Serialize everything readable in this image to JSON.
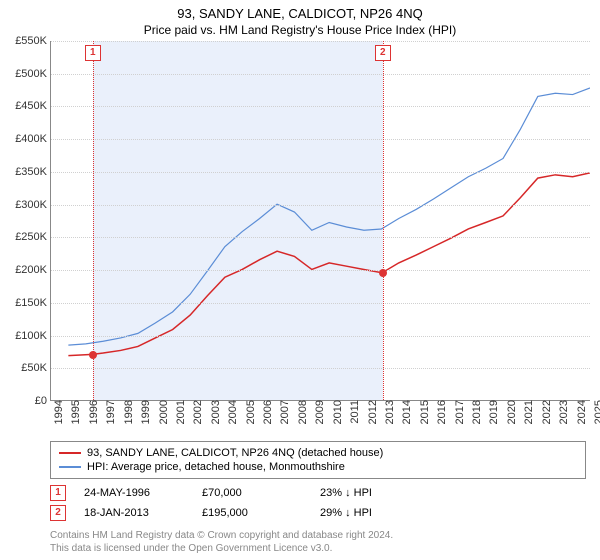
{
  "title": "93, SANDY LANE, CALDICOT, NP26 4NQ",
  "subtitle": "Price paid vs. HM Land Registry's House Price Index (HPI)",
  "chart": {
    "type": "line",
    "background_color": "#ffffff",
    "grid_color": "#d0d0d0",
    "axis_color": "#888888",
    "label_fontsize": 11,
    "x": {
      "min": 1994,
      "max": 2025,
      "ticks": [
        1994,
        1995,
        1996,
        1997,
        1998,
        1999,
        2000,
        2001,
        2002,
        2003,
        2004,
        2005,
        2006,
        2007,
        2008,
        2009,
        2010,
        2011,
        2012,
        2013,
        2014,
        2015,
        2016,
        2017,
        2018,
        2019,
        2020,
        2021,
        2022,
        2023,
        2024,
        2025
      ]
    },
    "y": {
      "min": 0,
      "max": 550000,
      "tick_step": 50000,
      "labels": [
        "£0",
        "£50K",
        "£100K",
        "£150K",
        "£200K",
        "£250K",
        "£300K",
        "£350K",
        "£400K",
        "£450K",
        "£500K",
        "£550K"
      ]
    },
    "shaded_span": {
      "from": 1996.4,
      "to": 2013.05,
      "color": "#eaf0fb"
    },
    "series": [
      {
        "name": "property",
        "color": "#d62728",
        "width": 1.5,
        "points": [
          [
            1995,
            68000
          ],
          [
            1996.4,
            70000
          ],
          [
            1997,
            72000
          ],
          [
            1998,
            76000
          ],
          [
            1999,
            82000
          ],
          [
            2000,
            95000
          ],
          [
            2001,
            108000
          ],
          [
            2002,
            130000
          ],
          [
            2003,
            160000
          ],
          [
            2004,
            188000
          ],
          [
            2005,
            200000
          ],
          [
            2006,
            215000
          ],
          [
            2007,
            228000
          ],
          [
            2008,
            220000
          ],
          [
            2009,
            200000
          ],
          [
            2010,
            210000
          ],
          [
            2011,
            205000
          ],
          [
            2012,
            200000
          ],
          [
            2013.05,
            195000
          ],
          [
            2014,
            210000
          ],
          [
            2015,
            222000
          ],
          [
            2016,
            235000
          ],
          [
            2017,
            248000
          ],
          [
            2018,
            262000
          ],
          [
            2019,
            272000
          ],
          [
            2020,
            282000
          ],
          [
            2021,
            310000
          ],
          [
            2022,
            340000
          ],
          [
            2023,
            345000
          ],
          [
            2024,
            342000
          ],
          [
            2025,
            348000
          ]
        ]
      },
      {
        "name": "hpi",
        "color": "#5b8dd6",
        "width": 1.2,
        "points": [
          [
            1995,
            84000
          ],
          [
            1996,
            86000
          ],
          [
            1997,
            90000
          ],
          [
            1998,
            95000
          ],
          [
            1999,
            102000
          ],
          [
            2000,
            118000
          ],
          [
            2001,
            135000
          ],
          [
            2002,
            162000
          ],
          [
            2003,
            198000
          ],
          [
            2004,
            235000
          ],
          [
            2005,
            258000
          ],
          [
            2006,
            278000
          ],
          [
            2007,
            300000
          ],
          [
            2008,
            288000
          ],
          [
            2009,
            260000
          ],
          [
            2010,
            272000
          ],
          [
            2011,
            265000
          ],
          [
            2012,
            260000
          ],
          [
            2013,
            262000
          ],
          [
            2014,
            278000
          ],
          [
            2015,
            292000
          ],
          [
            2016,
            308000
          ],
          [
            2017,
            325000
          ],
          [
            2018,
            342000
          ],
          [
            2019,
            355000
          ],
          [
            2020,
            370000
          ],
          [
            2021,
            415000
          ],
          [
            2022,
            465000
          ],
          [
            2023,
            470000
          ],
          [
            2024,
            468000
          ],
          [
            2025,
            478000
          ]
        ]
      }
    ],
    "sale_markers": [
      {
        "n": "1",
        "x": 1996.4,
        "y": 70000
      },
      {
        "n": "2",
        "x": 2013.05,
        "y": 195000
      }
    ]
  },
  "legend": [
    {
      "color": "#d62728",
      "label": "93, SANDY LANE, CALDICOT, NP26 4NQ (detached house)"
    },
    {
      "color": "#5b8dd6",
      "label": "HPI: Average price, detached house, Monmouthshire"
    }
  ],
  "sales": [
    {
      "n": "1",
      "date": "24-MAY-1996",
      "price": "£70,000",
      "delta": "23% ↓ HPI"
    },
    {
      "n": "2",
      "date": "18-JAN-2013",
      "price": "£195,000",
      "delta": "29% ↓ HPI"
    }
  ],
  "footer_lines": [
    "Contains HM Land Registry data © Crown copyright and database right 2024.",
    "This data is licensed under the Open Government Licence v3.0."
  ]
}
